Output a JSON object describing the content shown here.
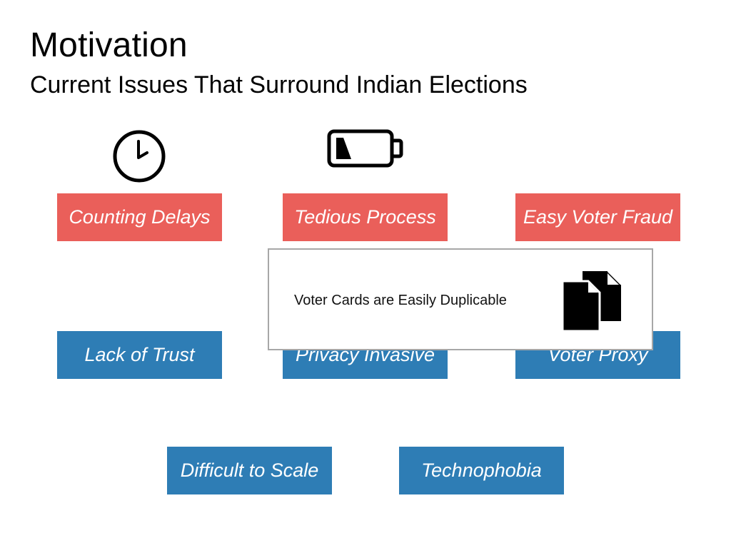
{
  "slide": {
    "title": "Motivation",
    "subtitle": "Current Issues That Surround Indian Elections"
  },
  "icons": {
    "clock": "clock-icon",
    "battery": "battery-low-icon",
    "documents": "documents-copy-icon"
  },
  "issues_top": [
    {
      "label": "Counting Delays",
      "color": "#ea5f5a"
    },
    {
      "label": "Tedious Process",
      "color": "#ea5f5a"
    },
    {
      "label": "Easy Voter Fraud",
      "color": "#ea5f5a"
    }
  ],
  "issues_middle": [
    {
      "label": "Lack of Trust",
      "color": "#2e7db5"
    },
    {
      "label": "Privacy Invasive",
      "color": "#2e7db5"
    },
    {
      "label": "Voter Proxy",
      "color": "#2e7db5"
    }
  ],
  "issues_bottom": [
    {
      "label": "Difficult to Scale",
      "color": "#2e7db5"
    },
    {
      "label": "Technophobia",
      "color": "#2e7db5"
    }
  ],
  "callout": {
    "text": "Voter Cards are Easily Duplicable"
  }
}
